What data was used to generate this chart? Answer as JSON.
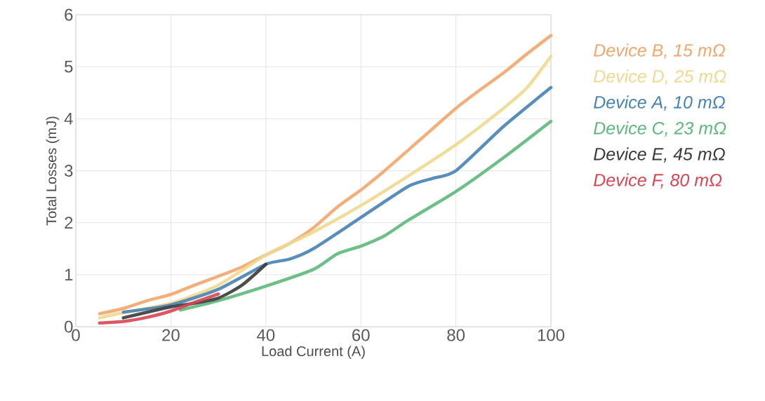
{
  "chart_data": {
    "type": "line",
    "xlabel": "Load Current (A)",
    "ylabel": "Total Losses (mJ)",
    "xlim": [
      0,
      100
    ],
    "xticks": [
      0,
      20,
      40,
      60,
      80,
      100
    ],
    "ylim": [
      0,
      6
    ],
    "yticks": [
      0,
      1,
      2,
      3,
      4,
      5,
      6
    ],
    "grid": true,
    "legend": "right",
    "line_style": "solid",
    "series": [
      {
        "name": "Device B, 15 mΩ",
        "color": "#f2a66a",
        "x": [
          5,
          10,
          15,
          20,
          25,
          30,
          35,
          40,
          45,
          50,
          55,
          60,
          65,
          70,
          75,
          80,
          85,
          90,
          95,
          100
        ],
        "values": [
          0.25,
          0.35,
          0.5,
          0.62,
          0.8,
          0.97,
          1.15,
          1.38,
          1.6,
          1.9,
          2.3,
          2.63,
          3.0,
          3.4,
          3.8,
          4.2,
          4.55,
          4.88,
          5.25,
          5.6
        ]
      },
      {
        "name": "Device D, 25 mΩ",
        "color": "#eed98f",
        "x": [
          5,
          10,
          20,
          30,
          40,
          45,
          50,
          60,
          70,
          80,
          90,
          95,
          100
        ],
        "values": [
          0.17,
          0.27,
          0.45,
          0.8,
          1.38,
          1.6,
          1.82,
          2.33,
          2.9,
          3.5,
          4.2,
          4.6,
          5.2
        ]
      },
      {
        "name": "Device A, 10 mΩ",
        "color": "#4682b4",
        "x": [
          10,
          20,
          30,
          40,
          45,
          50,
          60,
          70,
          75,
          80,
          90,
          100
        ],
        "values": [
          0.28,
          0.42,
          0.72,
          1.2,
          1.3,
          1.5,
          2.1,
          2.7,
          2.85,
          3.0,
          3.85,
          4.6
        ]
      },
      {
        "name": "Device C, 23 mΩ",
        "color": "#5cb87a",
        "x": [
          22,
          30,
          40,
          50,
          55,
          60,
          65,
          70,
          80,
          90,
          100
        ],
        "values": [
          0.32,
          0.5,
          0.78,
          1.1,
          1.4,
          1.55,
          1.75,
          2.05,
          2.6,
          3.25,
          3.95
        ]
      },
      {
        "name": "Device E, 45 mΩ",
        "color": "#3a3a3a",
        "x": [
          10,
          20,
          25,
          30,
          35,
          40
        ],
        "values": [
          0.17,
          0.38,
          0.45,
          0.55,
          0.8,
          1.2
        ]
      },
      {
        "name": "Device F, 80 mΩ",
        "color": "#d94452",
        "x": [
          5,
          10,
          15,
          20,
          25,
          30
        ],
        "values": [
          0.07,
          0.1,
          0.18,
          0.3,
          0.47,
          0.63
        ]
      }
    ]
  }
}
